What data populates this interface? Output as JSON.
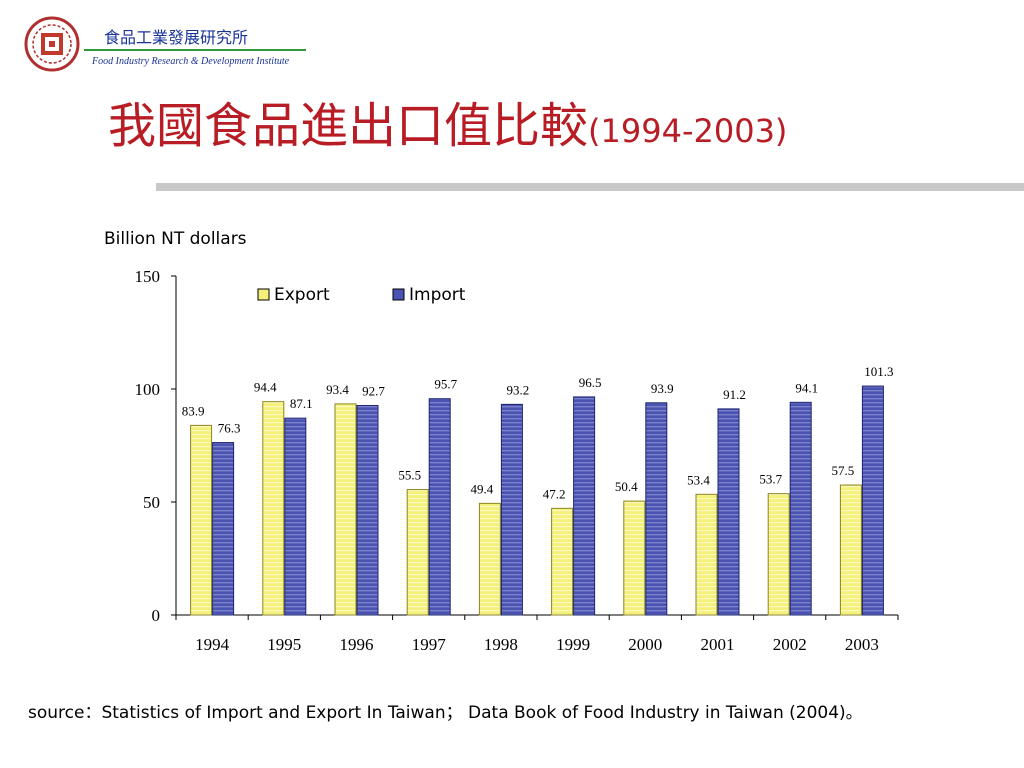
{
  "header": {
    "org_name_zh": "食品工業發展研究所",
    "org_name_en": "Food Industry Research & Development Institute",
    "logo_icon": "institute-seal-icon"
  },
  "slide": {
    "title_zh": "我國食品進出口值比較",
    "title_years": "(1994-2003)",
    "title_color": "#b81c24",
    "footer_source": "source：Statistics of Import and Export In Taiwan； Data Book of Food Industry in Taiwan (2004)。"
  },
  "chart_data": {
    "type": "bar",
    "title": "",
    "unit_label": "Billion NT dollars",
    "xlabel": "",
    "ylabel": "",
    "ylim": [
      0,
      150
    ],
    "yticks": [
      0,
      50,
      100,
      150
    ],
    "grid": false,
    "legend_position": "top-left",
    "categories": [
      "1994",
      "1995",
      "1996",
      "1997",
      "1998",
      "1999",
      "2000",
      "2001",
      "2002",
      "2003"
    ],
    "series": [
      {
        "name": "Export",
        "color": "#f5f07a",
        "values": [
          83.9,
          94.4,
          93.4,
          55.5,
          49.4,
          47.2,
          50.4,
          53.4,
          53.7,
          57.5
        ]
      },
      {
        "name": "Import",
        "color": "#4a54b0",
        "values": [
          76.3,
          87.1,
          92.7,
          95.7,
          93.2,
          96.5,
          93.9,
          91.2,
          94.1,
          101.3
        ]
      }
    ]
  }
}
